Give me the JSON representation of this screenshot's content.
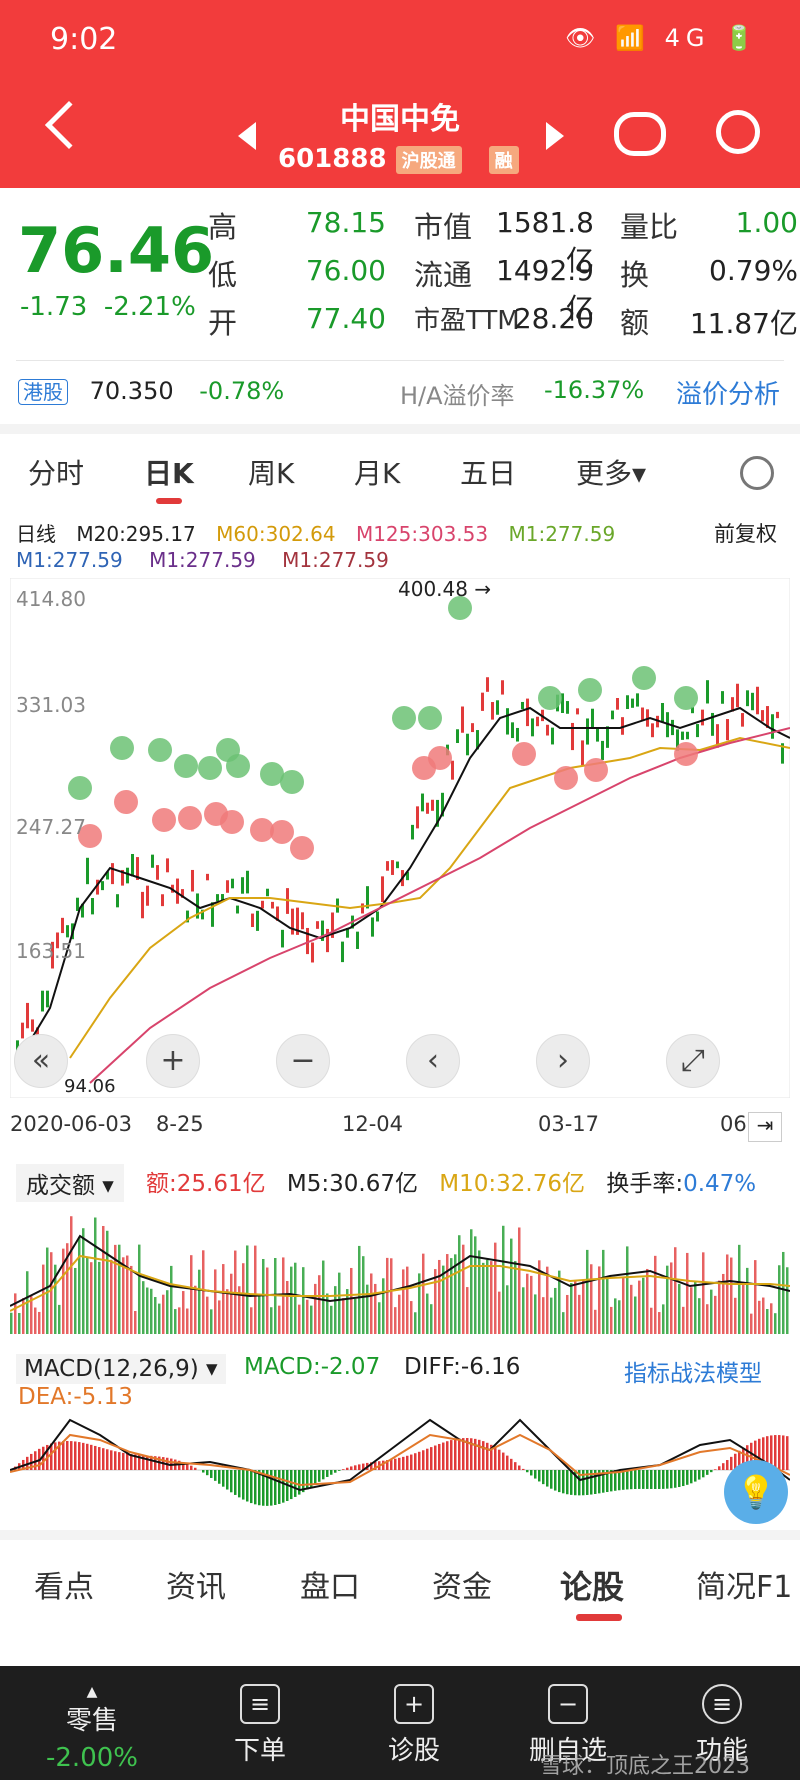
{
  "status": {
    "time": "9:02",
    "icons": "👁 📶 4G 🔋"
  },
  "nav": {
    "title": "中国中免",
    "code": "601888",
    "tag1": "沪股通",
    "tag2": "融"
  },
  "quote": {
    "price": "76.46",
    "change": "-1.73",
    "pct": "-2.21%",
    "high_label": "高",
    "high": "78.15",
    "low_label": "低",
    "low": "76.00",
    "open_label": "开",
    "open": "77.40",
    "mcap_label": "市值",
    "mcap": "1581.8亿",
    "float_label": "流通",
    "float": "1492.9亿",
    "pe_label": "市盈TTM",
    "pe": "28.20",
    "vr_label": "量比",
    "vr": "1.00",
    "turn_label": "换",
    "turn": "0.79%",
    "amt_label": "额",
    "amt": "11.87亿"
  },
  "hk": {
    "badge": "港股",
    "price": "70.350",
    "pct": "-0.78%",
    "ha_label": "H/A溢价率",
    "ha": "-16.37%",
    "link": "溢价分析"
  },
  "tabs": [
    "分时",
    "日K",
    "周K",
    "月K",
    "五日",
    "更多▾"
  ],
  "kline": {
    "label": "日线",
    "ma20": "M20:295.17",
    "ma60": "M60:302.64",
    "ma125": "M125:303.53",
    "ma1a": "M1:277.59",
    "ma1b": "M1:277.59",
    "ma1c": "M1:277.59",
    "ma1d": "M1:277.59",
    "adjust": "前复权",
    "y_ticks": [
      "414.80",
      "331.03",
      "247.27",
      "163.51"
    ],
    "peak": "400.48 →",
    "low": "94.06",
    "dates": [
      "2020-06-03",
      "8-25",
      "12-04",
      "03-17",
      "06"
    ]
  },
  "volume": {
    "selector": "成交额 ▾",
    "amt": "额:25.61亿",
    "m5": "M5:30.67亿",
    "m10": "M10:32.76亿",
    "turnover_label": "换手率:",
    "turnover": "0.47%"
  },
  "macd": {
    "selector": "MACD(12,26,9) ▾",
    "macd": "MACD:-2.07",
    "diff": "DIFF:-6.16",
    "dea": "DEA:-5.13",
    "link": "指标战法模型"
  },
  "bottom_tabs": [
    "看点",
    "资讯",
    "盘口",
    "资金",
    "论股",
    "简况F1"
  ],
  "bottom_bar": {
    "item1": "零售",
    "item1_pct": "-2.00%",
    "item2": "下单",
    "item3": "诊股",
    "item4": "删自选",
    "item5": "功能",
    "watermark": "雪球：顶底之王2023"
  },
  "colors": {
    "header": "#f23c3c",
    "down": "#1a9a2a",
    "up": "#e13a3a"
  }
}
